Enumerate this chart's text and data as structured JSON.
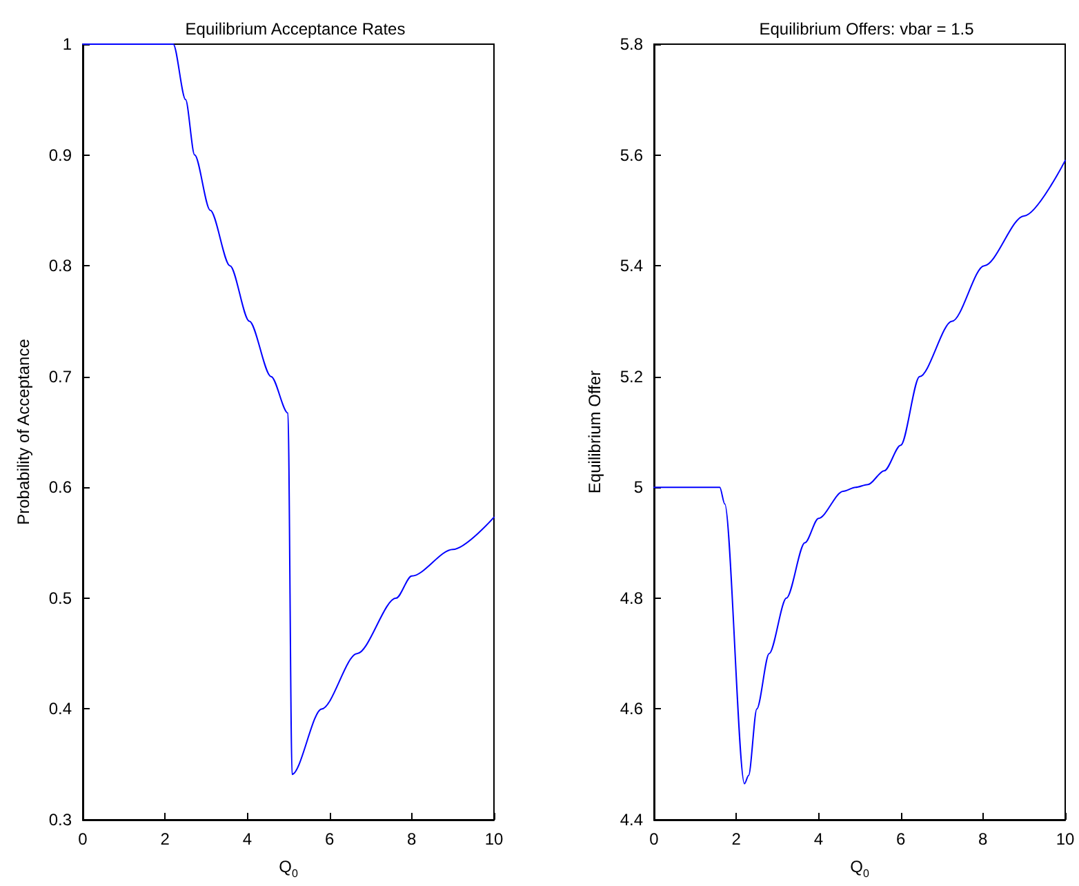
{
  "chart_data": [
    {
      "type": "line",
      "title": "Equilibrium Acceptance Rates",
      "xlabel": "Q$_{0}$",
      "ylabel": "Probability of Acceptance",
      "xlim": [
        0,
        10
      ],
      "xticks": [
        0,
        2,
        4,
        6,
        8,
        10
      ],
      "ylim": [
        0.3,
        1
      ],
      "yticks": [
        0.3,
        0.4,
        0.5,
        0.6,
        0.7,
        0.8,
        0.9,
        1
      ],
      "grid": false,
      "marker": "none",
      "line_style": "solid",
      "series": [
        {
          "color": "#0000ff",
          "x": [
            0,
            2.2,
            2.5,
            2.72,
            3.1,
            3.58,
            4.05,
            4.58,
            4.99,
            5.09,
            5.81,
            6.67,
            7.62,
            8,
            9,
            10
          ],
          "values": [
            1,
            1,
            0.95,
            0.9,
            0.85,
            0.8,
            0.75,
            0.7,
            0.667,
            0.341,
            0.4,
            0.45,
            0.5,
            0.52,
            0.544,
            0.573
          ]
        }
      ]
    },
    {
      "type": "line",
      "title": "Equilibrium Offers: vbar = 1.5",
      "xlabel": "Q$_{0}$",
      "ylabel": "Equilibrium Offer",
      "xlim": [
        0,
        10
      ],
      "xticks": [
        0,
        2,
        4,
        6,
        8,
        10
      ],
      "ylim": [
        4.4,
        5.8
      ],
      "yticks": [
        4.4,
        4.6,
        4.8,
        5,
        5.2,
        5.4,
        5.6,
        5.8
      ],
      "grid": false,
      "marker": "none",
      "line_style": "solid",
      "series": [
        {
          "color": "#0000ff",
          "x": [
            0,
            1.6,
            1.72,
            2.2,
            2.3,
            2.5,
            2.8,
            3.22,
            3.67,
            4,
            4.6,
            4.9,
            5.2,
            5.6,
            6,
            6.46,
            7.25,
            8.03,
            9,
            10
          ],
          "values": [
            5,
            5,
            4.97,
            4.465,
            4.48,
            4.6,
            4.7,
            4.8,
            4.9,
            4.944,
            4.993,
            5,
            5.005,
            5.03,
            5.076,
            5.2,
            5.3,
            5.4,
            5.49,
            5.59
          ]
        }
      ]
    }
  ]
}
